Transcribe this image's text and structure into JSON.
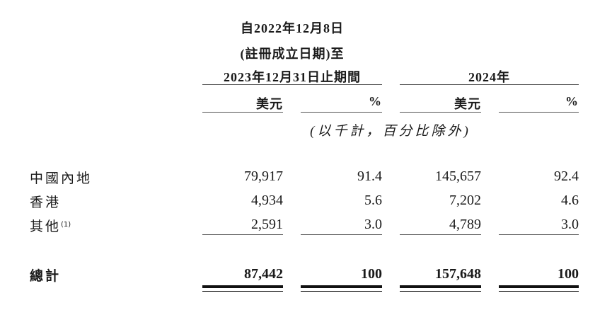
{
  "header": {
    "period1_line1": "自2022年12月8日",
    "period1_line2": "(註冊成立日期)至",
    "period1_line3": "2023年12月31日止期間",
    "period2": "2024年",
    "col_usd": "美元",
    "col_pct": "%",
    "unit_note": "(以千計，百分比除外)"
  },
  "rows": [
    {
      "label": "中國內地",
      "note": "",
      "usd_2023": "79,917",
      "pct_2023": "91.4",
      "usd_2024": "145,657",
      "pct_2024": "92.4"
    },
    {
      "label": "香港",
      "note": "",
      "usd_2023": "4,934",
      "pct_2023": "5.6",
      "usd_2024": "7,202",
      "pct_2024": "4.6"
    },
    {
      "label": "其他",
      "note": "(1)",
      "usd_2023": "2,591",
      "pct_2023": "3.0",
      "usd_2024": "4,789",
      "pct_2024": "3.0"
    }
  ],
  "total": {
    "label": "總計",
    "usd_2023": "87,442",
    "pct_2023": "100",
    "usd_2024": "157,648",
    "pct_2024": "100"
  }
}
